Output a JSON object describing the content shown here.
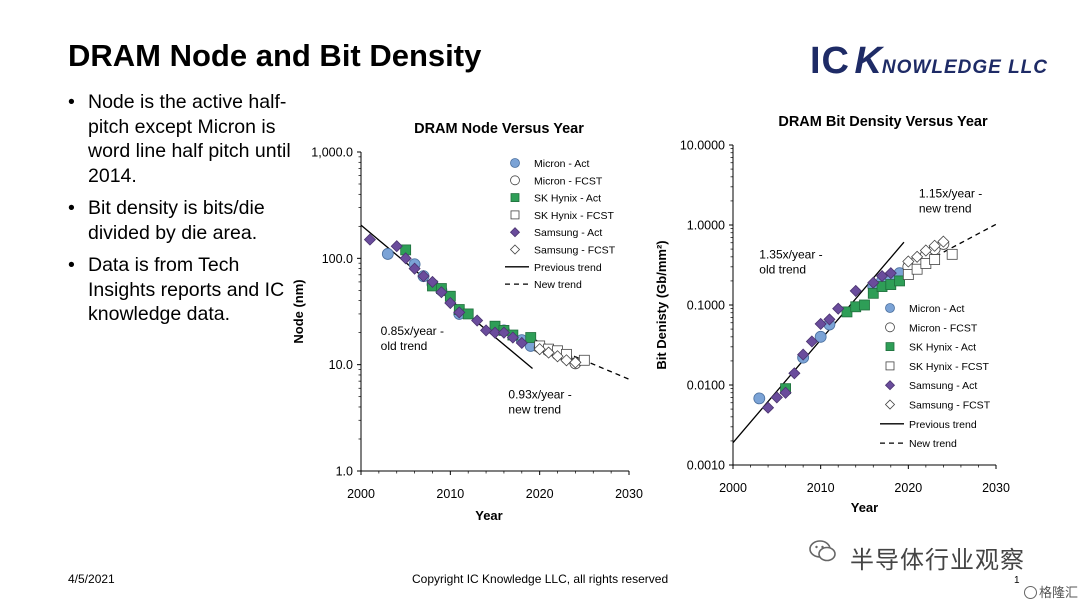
{
  "slide": {
    "title": "DRAM Node and Bit Density",
    "logo": {
      "ic": "IC",
      "k": "K",
      "rest": "NOWLEDGE LLC"
    },
    "bullets": [
      "Node is the active half-pitch except Micron is word line half pitch until 2014.",
      "Bit density is bits/die divided by die area.",
      "Data is from Tech Insights reports and IC knowledge data."
    ],
    "footer_date": "4/5/2021",
    "footer_copyright": "Copyright IC Knowledge LLC, all rights reserved",
    "page_number": "1",
    "watermark_text": "半导体行业观察",
    "watermark_corner": "格隆汇"
  },
  "colors": {
    "micron": "#7ba3d6",
    "hynix": "#2e9e57",
    "samsung": "#6a4c9c",
    "logo": "#1e2b66"
  },
  "chart_data": [
    {
      "type": "scatter",
      "id": "node",
      "title": "DRAM Node Versus Year",
      "xlabel": "Year",
      "ylabel": "Node (nm)",
      "xlim": [
        2000,
        2030
      ],
      "xticks": [
        2000,
        2010,
        2020,
        2030
      ],
      "ylim": [
        1,
        1000
      ],
      "yscale": "log",
      "yticks": [
        1,
        10,
        100,
        1000
      ],
      "ytick_labels": [
        "1.0",
        "10.0",
        "100.0",
        "1,000.0"
      ],
      "legend": [
        "Micron - Act",
        "Micron - FCST",
        "SK Hynix - Act",
        "SK Hynix - FCST",
        "Samsung - Act",
        "Samsung - FCST",
        "Previous trend",
        "New trend"
      ],
      "annotations": [
        {
          "lines": [
            "0.85x/year -",
            "old trend"
          ],
          "x": 2002.2,
          "y": 19
        },
        {
          "lines": [
            "0.93x/year -",
            "new trend"
          ],
          "x": 2016.5,
          "y": 4.8
        }
      ],
      "trends": [
        {
          "name": "Previous trend",
          "style": "solid",
          "x": [
            2000,
            2019.2
          ],
          "y": [
            205,
            9.2
          ]
        },
        {
          "name": "New trend",
          "style": "dashed",
          "x": [
            2019.2,
            2030
          ],
          "y": [
            17.5,
            7.3
          ]
        }
      ],
      "series": [
        {
          "name": "Micron - Act",
          "marker": "circle",
          "filled": true,
          "color": "micron",
          "points": [
            [
              2003,
              110
            ],
            [
              2006,
              88
            ],
            [
              2007,
              68
            ],
            [
              2008,
              57
            ],
            [
              2009,
              50
            ],
            [
              2011,
              30
            ],
            [
              2016,
              21
            ],
            [
              2018,
              17
            ],
            [
              2019,
              15
            ]
          ]
        },
        {
          "name": "Micron - FCST",
          "marker": "circle",
          "filled": false,
          "points": [
            [
              2020,
              14.5
            ],
            [
              2021,
              13.5
            ],
            [
              2022,
              12.5
            ],
            [
              2023,
              11.5
            ],
            [
              2024,
              10.3
            ]
          ]
        },
        {
          "name": "SK Hynix - Act",
          "marker": "square",
          "filled": true,
          "color": "hynix",
          "points": [
            [
              2005,
              120
            ],
            [
              2008,
              55
            ],
            [
              2009,
              52
            ],
            [
              2010,
              44
            ],
            [
              2011,
              33
            ],
            [
              2012,
              30
            ],
            [
              2015,
              23
            ],
            [
              2016,
              21
            ],
            [
              2017,
              19
            ],
            [
              2019,
              18
            ]
          ]
        },
        {
          "name": "SK Hynix - FCST",
          "marker": "square",
          "filled": false,
          "points": [
            [
              2020,
              15
            ],
            [
              2021,
              14
            ],
            [
              2022,
              13.5
            ],
            [
              2023,
              12.5
            ],
            [
              2025,
              11
            ]
          ]
        },
        {
          "name": "Samsung - Act",
          "marker": "diamond",
          "filled": true,
          "color": "samsung",
          "points": [
            [
              2001,
              150
            ],
            [
              2004,
              130
            ],
            [
              2005,
              100
            ],
            [
              2006,
              80
            ],
            [
              2007,
              68
            ],
            [
              2008,
              60
            ],
            [
              2009,
              48
            ],
            [
              2010,
              38
            ],
            [
              2011,
              31
            ],
            [
              2013,
              26
            ],
            [
              2014,
              21
            ],
            [
              2015,
              20
            ],
            [
              2016,
              20
            ],
            [
              2017,
              18
            ],
            [
              2018,
              16
            ]
          ]
        },
        {
          "name": "Samsung - FCST",
          "marker": "diamond",
          "filled": false,
          "points": [
            [
              2020,
              14
            ],
            [
              2021,
              13
            ],
            [
              2022,
              12
            ],
            [
              2023,
              11
            ],
            [
              2024,
              10.5
            ]
          ]
        }
      ]
    },
    {
      "type": "scatter",
      "id": "density",
      "title": "DRAM Bit Density Versus Year",
      "xlabel": "Year",
      "ylabel": "Bit Denisty (Gb/mm²)",
      "xlim": [
        2000,
        2030
      ],
      "xticks": [
        2000,
        2010,
        2020,
        2030
      ],
      "ylim": [
        0.001,
        10
      ],
      "yscale": "log",
      "yticks": [
        0.001,
        0.01,
        0.1,
        1,
        10
      ],
      "ytick_labels": [
        "0.0010",
        "0.0100",
        "0.1000",
        "1.0000",
        "10.0000"
      ],
      "legend": [
        "Micron - Act",
        "Micron - FCST",
        "SK Hynix - Act",
        "SK Hynix - FCST",
        "Samsung - Act",
        "Samsung - FCST",
        "Previous trend",
        "New trend"
      ],
      "annotations": [
        {
          "lines": [
            "1.35x/year -",
            "old trend"
          ],
          "x": 2003,
          "y": 0.38
        },
        {
          "lines": [
            "1.15x/year -",
            "new trend"
          ],
          "x": 2021.2,
          "y": 2.2
        }
      ],
      "trends": [
        {
          "name": "Previous trend",
          "style": "solid",
          "x": [
            2000,
            2019.5
          ],
          "y": [
            0.0019,
            0.61
          ]
        },
        {
          "name": "New trend",
          "style": "dashed",
          "x": [
            2019.5,
            2030
          ],
          "y": [
            0.25,
            1.02
          ]
        }
      ],
      "series": [
        {
          "name": "Micron - Act",
          "marker": "circle",
          "filled": true,
          "color": "micron",
          "points": [
            [
              2003,
              0.0068
            ],
            [
              2008,
              0.022
            ],
            [
              2010,
              0.04
            ],
            [
              2011,
              0.057
            ],
            [
              2016,
              0.17
            ],
            [
              2017,
              0.2
            ],
            [
              2018,
              0.22
            ],
            [
              2019,
              0.25
            ]
          ]
        },
        {
          "name": "Micron - FCST",
          "marker": "circle",
          "filled": false,
          "points": [
            [
              2020,
              0.3
            ],
            [
              2021,
              0.36
            ],
            [
              2022,
              0.42
            ],
            [
              2023,
              0.5
            ],
            [
              2024,
              0.58
            ]
          ]
        },
        {
          "name": "SK Hynix - Act",
          "marker": "square",
          "filled": true,
          "color": "hynix",
          "points": [
            [
              2006,
              0.009
            ],
            [
              2013,
              0.082
            ],
            [
              2014,
              0.095
            ],
            [
              2015,
              0.1
            ],
            [
              2016,
              0.14
            ],
            [
              2017,
              0.17
            ],
            [
              2018,
              0.18
            ],
            [
              2019,
              0.2
            ]
          ]
        },
        {
          "name": "SK Hynix - FCST",
          "marker": "square",
          "filled": false,
          "points": [
            [
              2020,
              0.24
            ],
            [
              2021,
              0.28
            ],
            [
              2022,
              0.33
            ],
            [
              2023,
              0.37
            ],
            [
              2025,
              0.43
            ]
          ]
        },
        {
          "name": "Samsung - Act",
          "marker": "diamond",
          "filled": true,
          "color": "samsung",
          "points": [
            [
              2004,
              0.0052
            ],
            [
              2005,
              0.007
            ],
            [
              2006,
              0.008
            ],
            [
              2007,
              0.014
            ],
            [
              2008,
              0.024
            ],
            [
              2009,
              0.035
            ],
            [
              2010,
              0.058
            ],
            [
              2011,
              0.066
            ],
            [
              2012,
              0.09
            ],
            [
              2014,
              0.15
            ],
            [
              2016,
              0.19
            ],
            [
              2017,
              0.23
            ],
            [
              2018,
              0.25
            ]
          ]
        },
        {
          "name": "Samsung - FCST",
          "marker": "diamond",
          "filled": false,
          "points": [
            [
              2020,
              0.35
            ],
            [
              2021,
              0.4
            ],
            [
              2022,
              0.48
            ],
            [
              2023,
              0.55
            ],
            [
              2024,
              0.62
            ]
          ]
        }
      ]
    }
  ]
}
